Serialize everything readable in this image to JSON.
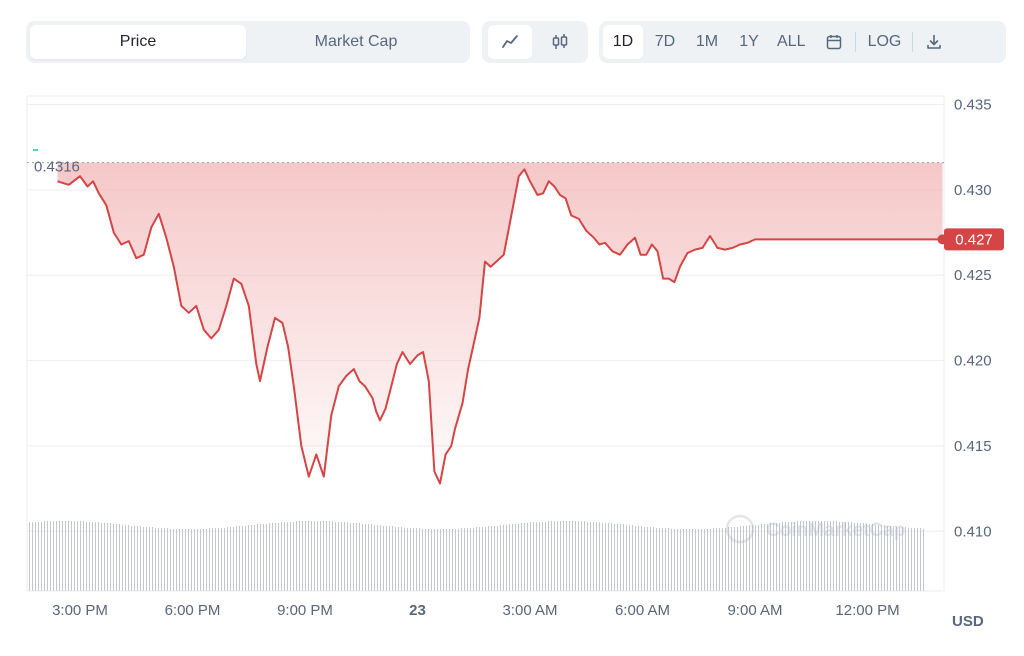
{
  "tabs": {
    "price_label": "Price",
    "market_cap_label": "Market Cap",
    "active": "Price"
  },
  "chart_types": [
    {
      "name": "line-chart-icon",
      "active": true
    },
    {
      "name": "candlestick-icon",
      "active": false
    }
  ],
  "ranges": [
    "1D",
    "7D",
    "1M",
    "1Y",
    "ALL"
  ],
  "active_range": "1D",
  "log_label": "LOG",
  "currency_label": "USD",
  "watermark": "CoinMarketCap",
  "colors": {
    "line": "#d64545",
    "fill_top": "#f2b5b5",
    "current_badge": "#d64545",
    "volume": "#c2c7d0",
    "grid": "#eceef2"
  },
  "chart_data": {
    "type": "area",
    "title": "",
    "xlabel": "",
    "ylabel": "",
    "y_ticks": [
      "0.435",
      "0.430",
      "0.425",
      "0.420",
      "0.415",
      "0.410"
    ],
    "ylim": [
      0.4065,
      0.4355
    ],
    "x_tick_labels": [
      "3:00 PM",
      "6:00 PM",
      "9:00 PM",
      "23",
      "3:00 AM",
      "6:00 AM",
      "9:00 AM",
      "12:00 PM"
    ],
    "x_tick_hours": [
      0,
      3,
      6,
      9,
      12,
      15,
      18,
      21
    ],
    "start_price_label": "0.4316",
    "start_price": 0.4316,
    "current_price_label": "0.427",
    "current_price": 0.4271,
    "series": [
      {
        "x": [
          -0.6,
          -0.3,
          0,
          0.2,
          0.35,
          0.5,
          0.7,
          0.9,
          1.1,
          1.3,
          1.5,
          1.7,
          1.9,
          2.1,
          2.3,
          2.5,
          2.7,
          2.9,
          3.1,
          3.3,
          3.5,
          3.7,
          3.9,
          4.1,
          4.3,
          4.5,
          4.7,
          4.8,
          5.0,
          5.2,
          5.4,
          5.55,
          5.7,
          5.9,
          6.1,
          6.3,
          6.5,
          6.7,
          6.9,
          7.1,
          7.3,
          7.45,
          7.6,
          7.8,
          7.9,
          8.0,
          8.15,
          8.3,
          8.45,
          8.6,
          8.8,
          9.0,
          9.15,
          9.3,
          9.45,
          9.6,
          9.75,
          9.9,
          10.0,
          10.2,
          10.35,
          10.5,
          10.65,
          10.8,
          10.95,
          11.1,
          11.3,
          11.5,
          11.7,
          11.85,
          12.0,
          12.2,
          12.35,
          12.5,
          12.65,
          12.8,
          12.95,
          13.1,
          13.3,
          13.5,
          13.7,
          13.85,
          14.0,
          14.2,
          14.4,
          14.6,
          14.8,
          14.95,
          15.1,
          15.25,
          15.4,
          15.55,
          15.7,
          15.85,
          16.0,
          16.2,
          16.4,
          16.6,
          16.8,
          17.0,
          17.2,
          17.4,
          17.6,
          17.8,
          18.0,
          18.2,
          18.4,
          18.6,
          18.8,
          19.0,
          19.2,
          19.4,
          19.6,
          19.8,
          20.0,
          20.2,
          20.4,
          20.6,
          20.8,
          21.0,
          21.2,
          21.4,
          21.6,
          21.8,
          22.0,
          22.2,
          22.4,
          22.6,
          22.8,
          23.0
        ],
        "values": [
          0.4305,
          0.4303,
          0.4308,
          0.4302,
          0.4305,
          0.4298,
          0.4291,
          0.4275,
          0.4268,
          0.427,
          0.426,
          0.4262,
          0.4278,
          0.4286,
          0.4272,
          0.4255,
          0.4232,
          0.4228,
          0.4232,
          0.4218,
          0.4213,
          0.4218,
          0.4232,
          0.4248,
          0.4245,
          0.4232,
          0.4198,
          0.4188,
          0.4208,
          0.4225,
          0.4222,
          0.4208,
          0.4185,
          0.415,
          0.4132,
          0.4145,
          0.4132,
          0.4168,
          0.4185,
          0.4191,
          0.4195,
          0.4188,
          0.4185,
          0.4178,
          0.417,
          0.4165,
          0.4172,
          0.4185,
          0.4198,
          0.4205,
          0.4198,
          0.4203,
          0.4205,
          0.4188,
          0.4135,
          0.4128,
          0.4145,
          0.415,
          0.416,
          0.4175,
          0.4195,
          0.421,
          0.4225,
          0.4258,
          0.4255,
          0.4258,
          0.4262,
          0.4285,
          0.4308,
          0.4312,
          0.4305,
          0.4297,
          0.4298,
          0.4305,
          0.4302,
          0.4297,
          0.4295,
          0.4285,
          0.4283,
          0.4276,
          0.4272,
          0.4268,
          0.4269,
          0.4264,
          0.4262,
          0.4268,
          0.4272,
          0.4262,
          0.4262,
          0.4268,
          0.4264,
          0.4248,
          0.4248,
          0.4246,
          0.4255,
          0.4263,
          0.4265,
          0.4266,
          0.4273,
          0.4266,
          0.4265,
          0.4266,
          0.4268,
          0.4269,
          0.4271,
          0.4271,
          0.4271,
          0.4271,
          0.4271,
          0.4271,
          0.4271,
          0.4271,
          0.4271,
          0.4271,
          0.4271,
          0.4271,
          0.4271,
          0.4271,
          0.4271,
          0.4271,
          0.4271,
          0.4271,
          0.4271,
          0.4271,
          0.4271,
          0.4271,
          0.4271,
          0.4271,
          0.4271,
          0.4271
        ]
      }
    ],
    "grid": true,
    "volume_bars": true
  }
}
